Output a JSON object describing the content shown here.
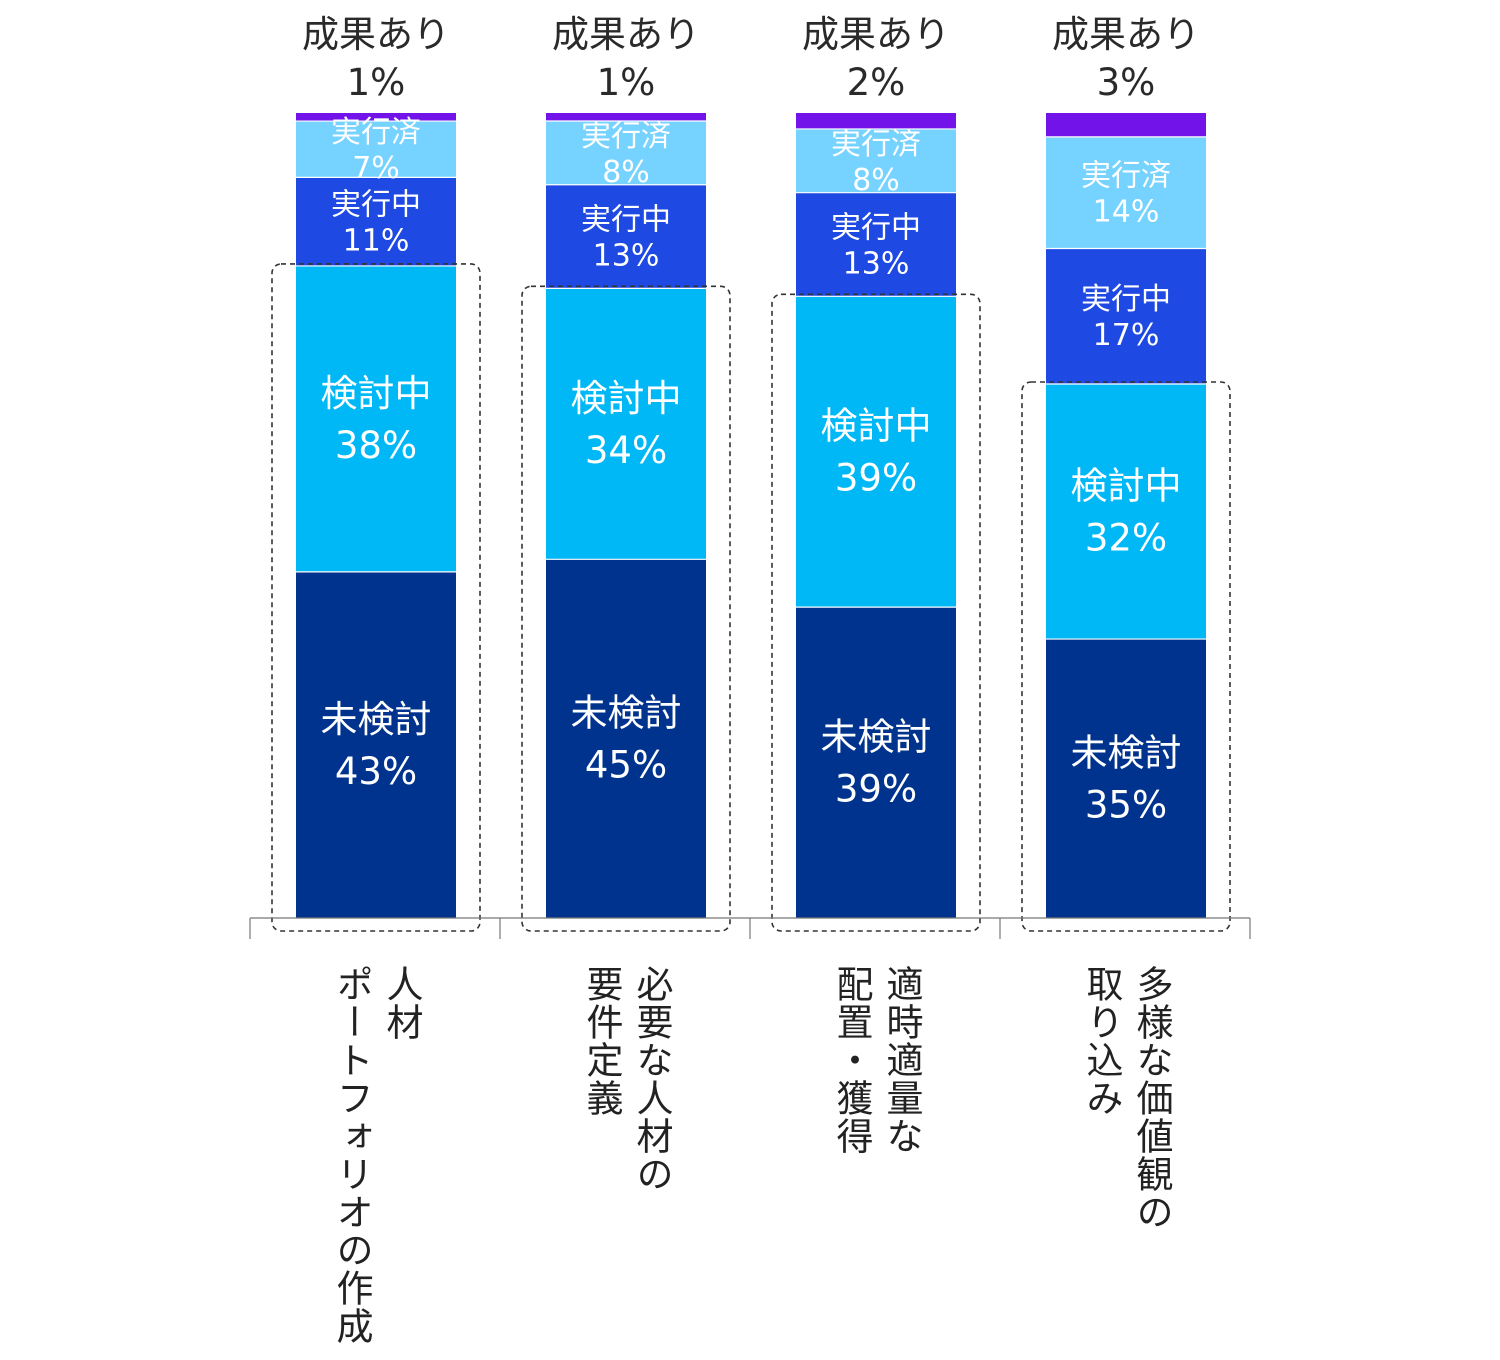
{
  "chart_data": {
    "type": "bar",
    "stacked": true,
    "normalized_percent": true,
    "title": "",
    "xlabel": "",
    "ylabel": "",
    "ylim": [
      0,
      100
    ],
    "grid": false,
    "legend": "none",
    "top_label_prefix": "成果あり",
    "categories": [
      "人材\nポートフォリオの作成",
      "必要な人材の\n要件定義",
      "適時適量な\n配置・獲得",
      "多様な価値観の\n取り込み"
    ],
    "series": [
      {
        "name": "未検討",
        "color": "#00338d",
        "values": [
          43,
          45,
          39,
          35
        ]
      },
      {
        "name": "検討中",
        "color": "#00b8f5",
        "values": [
          38,
          34,
          39,
          32
        ]
      },
      {
        "name": "実行中",
        "color": "#1e49e2",
        "values": [
          11,
          13,
          13,
          17
        ]
      },
      {
        "name": "実行済",
        "color": "#76d2ff",
        "values": [
          7,
          8,
          8,
          14
        ]
      },
      {
        "name": "成果あり",
        "color": "#7213ea",
        "values": [
          1,
          1,
          2,
          3
        ]
      }
    ],
    "highlight": "dashed box around 未検討 + 検討中"
  }
}
